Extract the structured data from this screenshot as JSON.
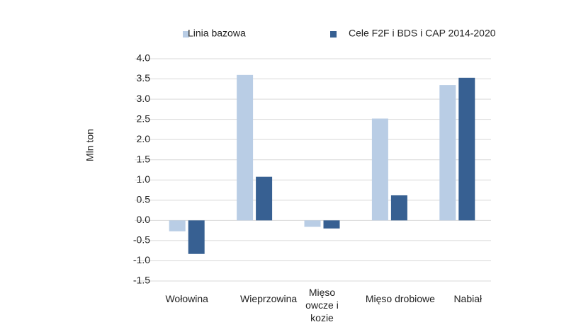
{
  "chart_data": {
    "type": "bar",
    "y_label": "Mln ton",
    "categories": [
      "Wołowina",
      "Wieprzowina",
      "Mięso owcze i kozie",
      "Mięso drobiowe",
      "Nabiał"
    ],
    "series": [
      {
        "name": "Linia bazowa",
        "color": "#b9cde5",
        "values": [
          -0.27,
          3.6,
          -0.16,
          2.52,
          3.35
        ]
      },
      {
        "name": "Cele F2F i BDS i CAP 2014-2020",
        "color": "#376092",
        "values": [
          -0.83,
          1.08,
          -0.2,
          0.62,
          3.53
        ]
      }
    ],
    "ylim": [
      -1.5,
      4
    ],
    "yticks": [
      {
        "value": 4,
        "label": "4.0"
      },
      3.5,
      {
        "value": 3,
        "label": "3.0"
      },
      2.5,
      {
        "value": 2,
        "label": "2.0"
      },
      1.5,
      {
        "value": 1,
        "label": "1.0"
      },
      0.5,
      {
        "value": 0,
        "label": "0.0"
      },
      -0.5,
      {
        "value": -1,
        "label": "-1.0"
      },
      -1.5
    ],
    "grid": true
  }
}
